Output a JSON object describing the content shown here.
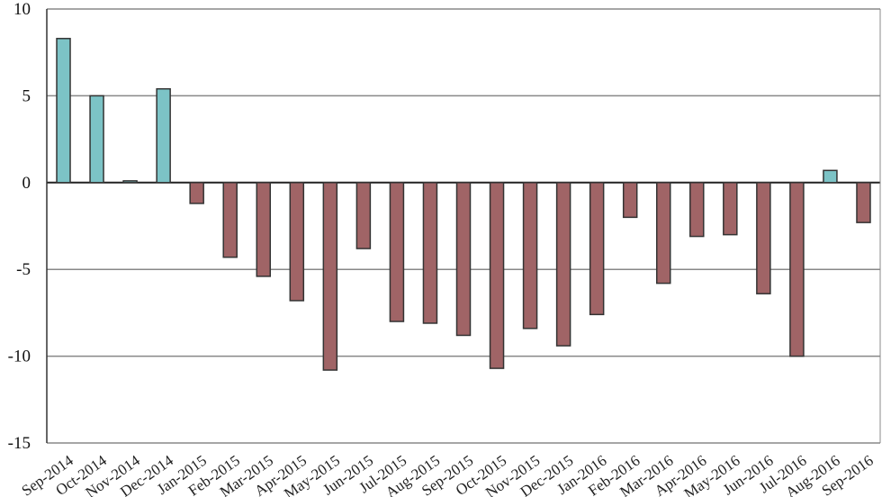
{
  "chart_data": {
    "type": "bar",
    "title": "",
    "xlabel": "",
    "ylabel": "",
    "ylim": [
      -15,
      10
    ],
    "yticks": [
      10,
      5,
      0,
      -5,
      -10,
      -15
    ],
    "grid": true,
    "legend": "none",
    "colors": {
      "positive": "#7cc3c6",
      "negative": "#a06466",
      "outline": "#333333",
      "grid": "#888888"
    },
    "categories": [
      "Sep-2014",
      "Oct-2014",
      "Nov-2014",
      "Dec-2014",
      "Jan-2015",
      "Feb-2015",
      "Mar-2015",
      "Apr-2015",
      "May-2015",
      "Jun-2015",
      "Jul-2015",
      "Aug-2015",
      "Sep-2015",
      "Oct-2015",
      "Nov-2015",
      "Dec-2015",
      "Jan-2016",
      "Feb-2016",
      "Mar-2016",
      "Apr-2016",
      "May-2016",
      "Jun-2016",
      "Jul-2016",
      "Aug-2016",
      "Sep-2016"
    ],
    "values": [
      8.3,
      5.0,
      0.1,
      5.4,
      -1.2,
      -4.3,
      -5.4,
      -6.8,
      -10.8,
      -3.8,
      -8.0,
      -8.1,
      -8.8,
      -10.7,
      -8.4,
      -9.4,
      -7.6,
      -2.0,
      -5.8,
      -3.1,
      -3.0,
      -6.4,
      -10.0,
      0.7,
      -2.3
    ]
  }
}
